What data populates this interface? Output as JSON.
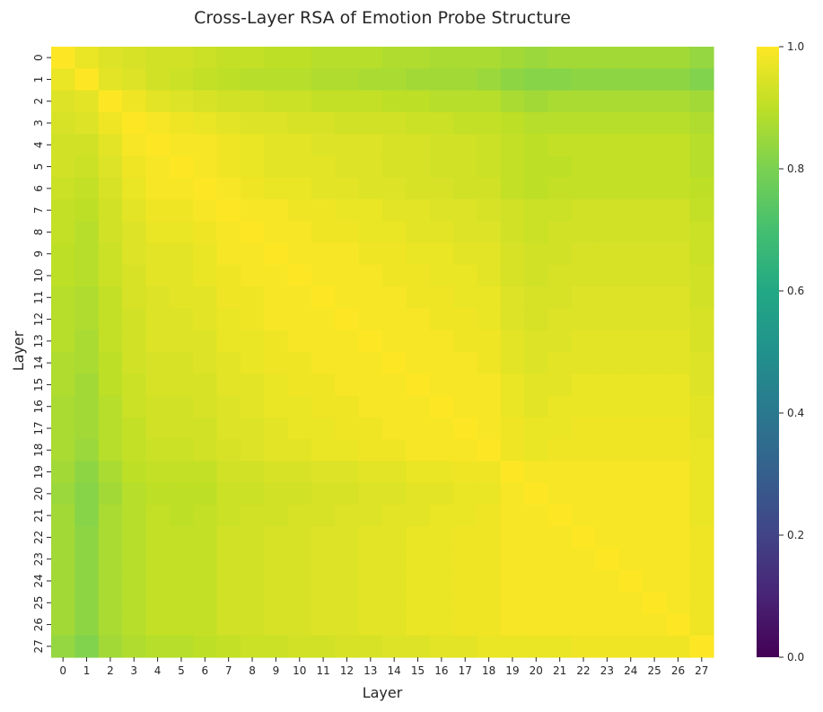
{
  "chart_data": {
    "type": "heatmap",
    "title": "Cross-Layer RSA of Emotion Probe Structure",
    "xlabel": "Layer",
    "ylabel": "Layer",
    "x_categories": [
      "0",
      "1",
      "2",
      "3",
      "4",
      "5",
      "6",
      "7",
      "8",
      "9",
      "10",
      "11",
      "12",
      "13",
      "14",
      "15",
      "16",
      "17",
      "18",
      "19",
      "20",
      "21",
      "22",
      "23",
      "24",
      "25",
      "26",
      "27"
    ],
    "y_categories": [
      "0",
      "1",
      "2",
      "3",
      "4",
      "5",
      "6",
      "7",
      "8",
      "9",
      "10",
      "11",
      "12",
      "13",
      "14",
      "15",
      "16",
      "17",
      "18",
      "19",
      "20",
      "21",
      "22",
      "23",
      "24",
      "25",
      "26",
      "27"
    ],
    "value_range": [
      0.0,
      1.0
    ],
    "colormap": "viridis",
    "colorbar": {
      "ticks": [
        0.0,
        0.2,
        0.4,
        0.6,
        0.8,
        1.0
      ],
      "tick_labels": [
        "0.0",
        "0.2",
        "0.4",
        "0.6",
        "0.8",
        "1.0"
      ]
    },
    "values": [
      [
        1.0,
        0.97,
        0.95,
        0.94,
        0.93,
        0.93,
        0.92,
        0.91,
        0.91,
        0.9,
        0.9,
        0.89,
        0.89,
        0.89,
        0.88,
        0.88,
        0.87,
        0.87,
        0.87,
        0.86,
        0.85,
        0.86,
        0.86,
        0.86,
        0.86,
        0.86,
        0.86,
        0.84
      ],
      [
        0.97,
        1.0,
        0.96,
        0.95,
        0.93,
        0.92,
        0.91,
        0.9,
        0.89,
        0.89,
        0.89,
        0.88,
        0.88,
        0.87,
        0.87,
        0.86,
        0.86,
        0.86,
        0.85,
        0.83,
        0.82,
        0.82,
        0.83,
        0.83,
        0.83,
        0.83,
        0.83,
        0.81
      ],
      [
        0.95,
        0.96,
        1.0,
        0.98,
        0.96,
        0.95,
        0.94,
        0.93,
        0.93,
        0.92,
        0.92,
        0.91,
        0.91,
        0.91,
        0.9,
        0.9,
        0.89,
        0.89,
        0.89,
        0.87,
        0.86,
        0.87,
        0.87,
        0.87,
        0.87,
        0.87,
        0.87,
        0.86
      ],
      [
        0.94,
        0.95,
        0.98,
        1.0,
        0.99,
        0.98,
        0.97,
        0.96,
        0.95,
        0.95,
        0.94,
        0.94,
        0.93,
        0.93,
        0.93,
        0.92,
        0.92,
        0.91,
        0.91,
        0.9,
        0.89,
        0.89,
        0.89,
        0.89,
        0.89,
        0.89,
        0.89,
        0.88
      ],
      [
        0.93,
        0.93,
        0.96,
        0.99,
        1.0,
        0.99,
        0.99,
        0.98,
        0.97,
        0.96,
        0.96,
        0.95,
        0.95,
        0.95,
        0.94,
        0.94,
        0.93,
        0.93,
        0.92,
        0.91,
        0.9,
        0.91,
        0.91,
        0.91,
        0.91,
        0.91,
        0.91,
        0.89
      ],
      [
        0.93,
        0.92,
        0.95,
        0.98,
        0.99,
        1.0,
        0.99,
        0.98,
        0.97,
        0.96,
        0.96,
        0.96,
        0.95,
        0.95,
        0.94,
        0.94,
        0.93,
        0.93,
        0.92,
        0.91,
        0.9,
        0.9,
        0.91,
        0.91,
        0.91,
        0.91,
        0.91,
        0.89
      ],
      [
        0.92,
        0.91,
        0.94,
        0.97,
        0.99,
        0.99,
        1.0,
        0.99,
        0.98,
        0.97,
        0.97,
        0.96,
        0.96,
        0.95,
        0.95,
        0.94,
        0.94,
        0.93,
        0.93,
        0.91,
        0.9,
        0.91,
        0.91,
        0.91,
        0.91,
        0.91,
        0.91,
        0.9
      ],
      [
        0.91,
        0.9,
        0.93,
        0.96,
        0.98,
        0.98,
        0.99,
        1.0,
        0.99,
        0.99,
        0.98,
        0.98,
        0.97,
        0.97,
        0.96,
        0.96,
        0.95,
        0.95,
        0.94,
        0.93,
        0.92,
        0.92,
        0.93,
        0.93,
        0.93,
        0.93,
        0.93,
        0.91
      ],
      [
        0.91,
        0.89,
        0.93,
        0.95,
        0.97,
        0.97,
        0.98,
        0.99,
        1.0,
        0.99,
        0.99,
        0.98,
        0.98,
        0.97,
        0.97,
        0.96,
        0.96,
        0.95,
        0.95,
        0.93,
        0.92,
        0.93,
        0.93,
        0.93,
        0.93,
        0.93,
        0.93,
        0.92
      ],
      [
        0.9,
        0.89,
        0.92,
        0.95,
        0.96,
        0.96,
        0.97,
        0.99,
        0.99,
        1.0,
        0.99,
        0.99,
        0.99,
        0.98,
        0.98,
        0.97,
        0.97,
        0.96,
        0.96,
        0.94,
        0.93,
        0.93,
        0.94,
        0.94,
        0.94,
        0.94,
        0.94,
        0.92
      ],
      [
        0.9,
        0.89,
        0.92,
        0.94,
        0.96,
        0.96,
        0.97,
        0.98,
        0.99,
        0.99,
        1.0,
        0.99,
        0.99,
        0.99,
        0.98,
        0.98,
        0.97,
        0.97,
        0.96,
        0.94,
        0.93,
        0.94,
        0.94,
        0.94,
        0.94,
        0.94,
        0.94,
        0.93
      ],
      [
        0.89,
        0.88,
        0.91,
        0.94,
        0.95,
        0.96,
        0.96,
        0.98,
        0.98,
        0.99,
        0.99,
        1.0,
        0.99,
        0.99,
        0.99,
        0.98,
        0.98,
        0.97,
        0.97,
        0.95,
        0.94,
        0.94,
        0.95,
        0.95,
        0.95,
        0.95,
        0.95,
        0.93
      ],
      [
        0.89,
        0.88,
        0.91,
        0.93,
        0.95,
        0.95,
        0.96,
        0.97,
        0.98,
        0.99,
        0.99,
        0.99,
        1.0,
        0.99,
        0.99,
        0.99,
        0.98,
        0.98,
        0.97,
        0.95,
        0.94,
        0.95,
        0.95,
        0.95,
        0.95,
        0.95,
        0.95,
        0.94
      ],
      [
        0.89,
        0.87,
        0.91,
        0.93,
        0.95,
        0.95,
        0.95,
        0.97,
        0.97,
        0.98,
        0.99,
        0.99,
        0.99,
        1.0,
        0.99,
        0.99,
        0.99,
        0.98,
        0.98,
        0.96,
        0.95,
        0.95,
        0.96,
        0.96,
        0.96,
        0.96,
        0.96,
        0.94
      ],
      [
        0.88,
        0.87,
        0.9,
        0.93,
        0.94,
        0.94,
        0.95,
        0.96,
        0.97,
        0.98,
        0.98,
        0.99,
        0.99,
        0.99,
        1.0,
        0.99,
        0.99,
        0.99,
        0.98,
        0.96,
        0.95,
        0.96,
        0.96,
        0.96,
        0.96,
        0.96,
        0.96,
        0.95
      ],
      [
        0.88,
        0.86,
        0.9,
        0.92,
        0.94,
        0.94,
        0.94,
        0.96,
        0.96,
        0.97,
        0.98,
        0.98,
        0.99,
        0.99,
        0.99,
        1.0,
        0.99,
        0.99,
        0.99,
        0.97,
        0.96,
        0.96,
        0.97,
        0.97,
        0.97,
        0.97,
        0.97,
        0.95
      ],
      [
        0.87,
        0.86,
        0.89,
        0.92,
        0.93,
        0.93,
        0.94,
        0.95,
        0.96,
        0.97,
        0.97,
        0.98,
        0.98,
        0.99,
        0.99,
        0.99,
        1.0,
        0.99,
        0.99,
        0.97,
        0.96,
        0.97,
        0.97,
        0.97,
        0.97,
        0.97,
        0.97,
        0.96
      ],
      [
        0.87,
        0.86,
        0.89,
        0.91,
        0.93,
        0.93,
        0.93,
        0.95,
        0.95,
        0.96,
        0.97,
        0.97,
        0.98,
        0.98,
        0.99,
        0.99,
        0.99,
        1.0,
        0.99,
        0.98,
        0.97,
        0.97,
        0.98,
        0.98,
        0.98,
        0.98,
        0.98,
        0.96
      ],
      [
        0.87,
        0.85,
        0.89,
        0.91,
        0.92,
        0.92,
        0.93,
        0.94,
        0.95,
        0.96,
        0.96,
        0.97,
        0.97,
        0.98,
        0.98,
        0.99,
        0.99,
        0.99,
        1.0,
        0.98,
        0.97,
        0.98,
        0.98,
        0.98,
        0.98,
        0.98,
        0.98,
        0.97
      ],
      [
        0.86,
        0.83,
        0.87,
        0.9,
        0.91,
        0.91,
        0.91,
        0.93,
        0.93,
        0.94,
        0.94,
        0.95,
        0.95,
        0.96,
        0.96,
        0.97,
        0.97,
        0.98,
        0.98,
        1.0,
        0.99,
        0.99,
        0.99,
        0.99,
        0.99,
        0.99,
        0.99,
        0.97
      ],
      [
        0.85,
        0.82,
        0.86,
        0.89,
        0.9,
        0.9,
        0.9,
        0.92,
        0.92,
        0.93,
        0.93,
        0.94,
        0.94,
        0.95,
        0.95,
        0.96,
        0.96,
        0.97,
        0.97,
        0.99,
        1.0,
        0.99,
        0.99,
        0.99,
        0.99,
        0.99,
        0.99,
        0.97
      ],
      [
        0.86,
        0.82,
        0.87,
        0.89,
        0.91,
        0.9,
        0.91,
        0.92,
        0.93,
        0.93,
        0.94,
        0.94,
        0.95,
        0.95,
        0.96,
        0.96,
        0.97,
        0.97,
        0.98,
        0.99,
        0.99,
        1.0,
        0.99,
        0.99,
        0.99,
        0.99,
        0.99,
        0.97
      ],
      [
        0.86,
        0.83,
        0.87,
        0.89,
        0.91,
        0.91,
        0.91,
        0.93,
        0.93,
        0.94,
        0.94,
        0.95,
        0.95,
        0.96,
        0.96,
        0.97,
        0.97,
        0.98,
        0.98,
        0.99,
        0.99,
        0.99,
        1.0,
        0.99,
        0.99,
        0.99,
        0.99,
        0.98
      ],
      [
        0.86,
        0.83,
        0.87,
        0.89,
        0.91,
        0.91,
        0.91,
        0.93,
        0.93,
        0.94,
        0.94,
        0.95,
        0.95,
        0.96,
        0.96,
        0.97,
        0.97,
        0.98,
        0.98,
        0.99,
        0.99,
        0.99,
        0.99,
        1.0,
        0.99,
        0.99,
        0.99,
        0.98
      ],
      [
        0.86,
        0.83,
        0.87,
        0.89,
        0.91,
        0.91,
        0.91,
        0.93,
        0.93,
        0.94,
        0.94,
        0.95,
        0.95,
        0.96,
        0.96,
        0.97,
        0.97,
        0.98,
        0.98,
        0.99,
        0.99,
        0.99,
        0.99,
        0.99,
        1.0,
        0.99,
        0.99,
        0.98
      ],
      [
        0.86,
        0.83,
        0.87,
        0.89,
        0.91,
        0.91,
        0.91,
        0.93,
        0.93,
        0.94,
        0.94,
        0.95,
        0.95,
        0.96,
        0.96,
        0.97,
        0.97,
        0.98,
        0.98,
        0.99,
        0.99,
        0.99,
        0.99,
        0.99,
        0.99,
        1.0,
        0.99,
        0.98
      ],
      [
        0.86,
        0.83,
        0.87,
        0.89,
        0.91,
        0.91,
        0.91,
        0.93,
        0.93,
        0.94,
        0.94,
        0.95,
        0.95,
        0.96,
        0.96,
        0.97,
        0.97,
        0.98,
        0.98,
        0.99,
        0.99,
        0.99,
        0.99,
        0.99,
        0.99,
        0.99,
        1.0,
        0.98
      ],
      [
        0.84,
        0.81,
        0.86,
        0.88,
        0.89,
        0.89,
        0.9,
        0.91,
        0.92,
        0.92,
        0.93,
        0.93,
        0.94,
        0.94,
        0.95,
        0.95,
        0.96,
        0.96,
        0.97,
        0.97,
        0.97,
        0.97,
        0.98,
        0.98,
        0.98,
        0.98,
        0.98,
        1.0
      ]
    ]
  }
}
